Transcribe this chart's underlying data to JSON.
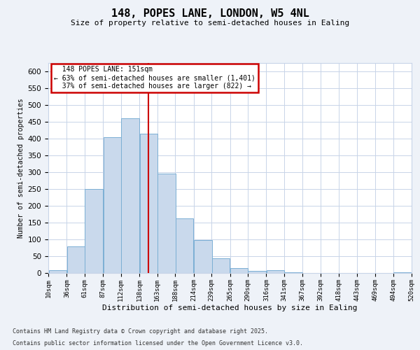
{
  "title": "148, POPES LANE, LONDON, W5 4NL",
  "subtitle": "Size of property relative to semi-detached houses in Ealing",
  "xlabel": "Distribution of semi-detached houses by size in Ealing",
  "ylabel": "Number of semi-detached properties",
  "property_size": 151,
  "property_label": "148 POPES LANE: 151sqm",
  "pct_smaller": 63,
  "n_smaller": 1401,
  "pct_larger": 37,
  "n_larger": 822,
  "bin_edges": [
    10,
    36,
    61,
    87,
    112,
    138,
    163,
    188,
    214,
    239,
    265,
    290,
    316,
    341,
    367,
    392,
    418,
    443,
    469,
    494,
    520
  ],
  "bin_labels": [
    "10sqm",
    "36sqm",
    "61sqm",
    "87sqm",
    "112sqm",
    "138sqm",
    "163sqm",
    "188sqm",
    "214sqm",
    "239sqm",
    "265sqm",
    "290sqm",
    "316sqm",
    "341sqm",
    "367sqm",
    "392sqm",
    "418sqm",
    "443sqm",
    "469sqm",
    "494sqm",
    "520sqm"
  ],
  "counts": [
    8,
    80,
    250,
    405,
    460,
    415,
    295,
    162,
    97,
    43,
    15,
    6,
    8,
    3,
    0,
    1,
    0,
    0,
    0,
    3
  ],
  "bar_color": "#c9d9ec",
  "bar_edge_color": "#7bafd4",
  "vline_color": "#cc0000",
  "annotation_box_color": "#cc0000",
  "bg_color": "#eef2f8",
  "plot_bg_color": "#ffffff",
  "grid_color": "#c8d4e8",
  "ylim": [
    0,
    625
  ],
  "yticks": [
    0,
    50,
    100,
    150,
    200,
    250,
    300,
    350,
    400,
    450,
    500,
    550,
    600
  ],
  "footer_line1": "Contains HM Land Registry data © Crown copyright and database right 2025.",
  "footer_line2": "Contains public sector information licensed under the Open Government Licence v3.0."
}
